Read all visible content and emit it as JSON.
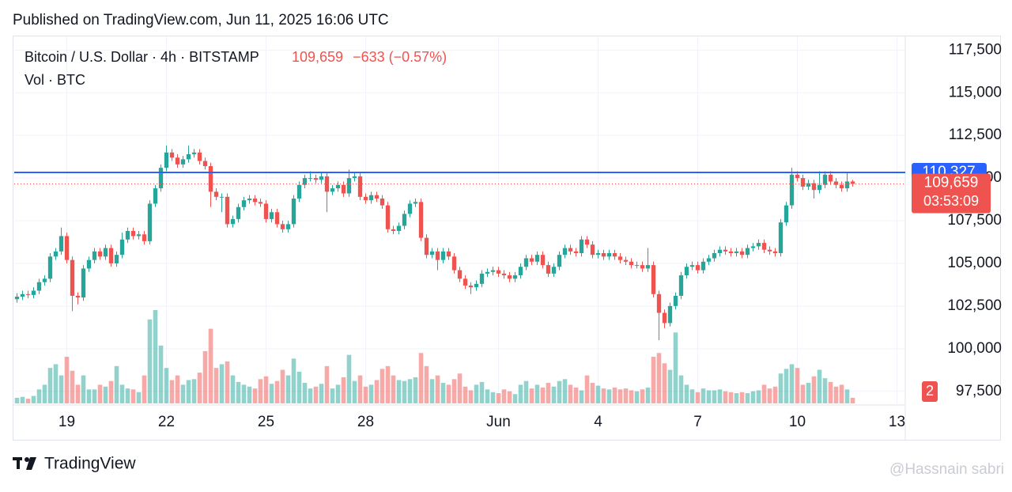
{
  "published": "Published on TradingView.com, Jun 11, 2025 16:06 UTC",
  "brand": "TradingView",
  "watermark": "@Hassnain sabri",
  "badge": "2",
  "chart_data": {
    "type": "candlestick",
    "title": "Bitcoin / U.S. Dollar · 4h · BITSTAMP",
    "price_label": "109,659",
    "change_label": "−633 (−0.57%)",
    "volume_label": "Vol · BTC",
    "up_color": "#26a69a",
    "down_color": "#ef5350",
    "grid": true,
    "xlim": [
      -0.5,
      160.5
    ],
    "xticks": [
      {
        "value": 9,
        "label": "19"
      },
      {
        "value": 27,
        "label": "22"
      },
      {
        "value": 45,
        "label": "25"
      },
      {
        "value": 63,
        "label": "28"
      },
      {
        "value": 87,
        "label": "Jun"
      },
      {
        "value": 105,
        "label": "4"
      },
      {
        "value": 123,
        "label": "7"
      },
      {
        "value": 141,
        "label": "10"
      },
      {
        "value": 159,
        "label": "13"
      }
    ],
    "ylim": [
      96700,
      118350
    ],
    "yticks": [
      {
        "value": 97500,
        "label": "97,500"
      },
      {
        "value": 100000,
        "label": "100,000"
      },
      {
        "value": 102500,
        "label": "102,500"
      },
      {
        "value": 105000,
        "label": "105,000"
      },
      {
        "value": 107500,
        "label": "107,500"
      },
      {
        "value": 110000,
        "label": "110,000"
      },
      {
        "value": 112500,
        "label": "112,500"
      },
      {
        "value": 115000,
        "label": "115,000"
      },
      {
        "value": 117500,
        "label": "117,500"
      }
    ],
    "vlim": [
      0,
      1000
    ],
    "price_line": {
      "value": 110327,
      "label": "110,327",
      "color": "#2962ff"
    },
    "last_line": {
      "value": 109659,
      "label": "109,659",
      "countdown": "03:53:09",
      "color": "#ef5350"
    },
    "open": [
      102900,
      103050,
      103200,
      103150,
      103400,
      103900,
      104100,
      105400,
      105700,
      106600,
      105200,
      103100,
      103000,
      104700,
      105200,
      105700,
      105400,
      105900,
      105000,
      105500,
      106400,
      106900,
      106600,
      106700,
      106300,
      108500,
      109400,
      110600,
      111500,
      111200,
      110800,
      111100,
      111400,
      111500,
      111000,
      110700,
      109200,
      108900,
      108900,
      107300,
      107600,
      108300,
      108700,
      108800,
      108600,
      108500,
      107600,
      108000,
      107300,
      107000,
      107300,
      108800,
      109600,
      110000,
      110000,
      109900,
      110100,
      109200,
      109400,
      109600,
      109100,
      110000,
      110100,
      108900,
      108700,
      109000,
      108800,
      108400,
      107000,
      106900,
      107200,
      107900,
      108500,
      108600,
      106500,
      105500,
      105700,
      105200,
      105700,
      105400,
      104600,
      104100,
      103700,
      103600,
      103800,
      104400,
      104500,
      104600,
      104400,
      104300,
      104100,
      104300,
      104800,
      105300,
      105100,
      105500,
      104900,
      104400,
      104800,
      105500,
      105900,
      105700,
      105600,
      106400,
      106100,
      105500,
      105600,
      105400,
      105600,
      105400,
      105200,
      105100,
      104900,
      104900,
      104700,
      104900,
      103200,
      102100,
      101500,
      102500,
      103100,
      104300,
      104800,
      104900,
      104600,
      105100,
      105300,
      105600,
      105800,
      105700,
      105600,
      105700,
      105500,
      105900,
      106000,
      106200,
      105800,
      105700,
      105600,
      107400,
      108400,
      110200,
      110000,
      109500,
      109700,
      109300,
      109600,
      110200,
      109800,
      109600,
      109400,
      109800
    ],
    "high": [
      103250,
      103400,
      103400,
      103600,
      104100,
      104300,
      105600,
      105900,
      107100,
      106800,
      105400,
      103300,
      104900,
      105400,
      105900,
      105900,
      106100,
      106100,
      105700,
      106800,
      107100,
      107100,
      106900,
      106900,
      108700,
      109600,
      110800,
      111900,
      111700,
      111400,
      111300,
      111900,
      111700,
      111700,
      111200,
      110900,
      109400,
      109100,
      109100,
      107800,
      108500,
      108900,
      109000,
      109000,
      108800,
      108700,
      108200,
      108200,
      107500,
      107500,
      109000,
      109800,
      110200,
      110400,
      110200,
      110300,
      110300,
      109600,
      109800,
      109800,
      110500,
      110300,
      110300,
      109100,
      109200,
      109200,
      109000,
      108600,
      107200,
      107400,
      108100,
      108700,
      108800,
      108800,
      106700,
      105900,
      105900,
      105900,
      105900,
      105600,
      104800,
      104300,
      103900,
      104000,
      104600,
      104700,
      104800,
      104800,
      104600,
      104500,
      104500,
      105000,
      105500,
      105500,
      105700,
      105700,
      105100,
      105000,
      105700,
      106100,
      106100,
      105900,
      106600,
      106600,
      106300,
      105800,
      105800,
      105800,
      105800,
      105600,
      105400,
      105300,
      105100,
      105100,
      105900,
      105100,
      103400,
      102300,
      102700,
      103300,
      104500,
      105000,
      105100,
      105100,
      105300,
      105500,
      105800,
      106000,
      106000,
      105900,
      105900,
      105900,
      106100,
      106200,
      106400,
      106400,
      106000,
      105900,
      107600,
      108600,
      110600,
      110400,
      110200,
      109900,
      109900,
      110400,
      110400,
      110400,
      110000,
      109800,
      110300,
      109900
    ],
    "low": [
      102700,
      102850,
      102950,
      102950,
      103200,
      103700,
      103900,
      105200,
      105500,
      105000,
      102200,
      102600,
      102800,
      104500,
      105000,
      105200,
      105200,
      104800,
      104800,
      105300,
      106200,
      106400,
      106400,
      106100,
      106100,
      108300,
      109200,
      110400,
      111000,
      110600,
      110600,
      110900,
      111200,
      110800,
      110500,
      108300,
      108700,
      108000,
      107100,
      107100,
      107400,
      108100,
      108500,
      108400,
      108300,
      107400,
      107400,
      107100,
      106800,
      106800,
      107100,
      108600,
      109400,
      109800,
      109700,
      109700,
      108000,
      109000,
      109200,
      108900,
      108900,
      109800,
      108700,
      108500,
      108500,
      108600,
      108200,
      106800,
      106700,
      106700,
      107000,
      107700,
      108300,
      106300,
      105300,
      105300,
      104600,
      105000,
      105200,
      104400,
      103900,
      103500,
      103200,
      103400,
      103600,
      104200,
      104300,
      104200,
      104100,
      103900,
      103900,
      104100,
      104600,
      104900,
      104900,
      104700,
      104200,
      104200,
      104600,
      105300,
      105500,
      105400,
      105400,
      105900,
      105300,
      105300,
      105200,
      105200,
      105200,
      105000,
      104900,
      104700,
      104700,
      104500,
      104500,
      103000,
      100500,
      101200,
      101300,
      102300,
      102900,
      104100,
      104600,
      104400,
      104400,
      104900,
      105100,
      105400,
      105500,
      105400,
      105400,
      105300,
      105300,
      105700,
      105800,
      105600,
      105500,
      105400,
      105400,
      107200,
      108200,
      109800,
      109300,
      109300,
      108800,
      109100,
      109400,
      109600,
      109400,
      109200,
      109200,
      109500
    ],
    "close": [
      103050,
      103200,
      103150,
      103400,
      103900,
      104100,
      105400,
      105700,
      106600,
      105200,
      103100,
      103000,
      104700,
      105200,
      105700,
      105400,
      105900,
      105000,
      105500,
      106400,
      106900,
      106600,
      106700,
      106300,
      108500,
      109400,
      110600,
      111500,
      111200,
      110800,
      111100,
      111400,
      111500,
      111000,
      110700,
      109200,
      108900,
      108900,
      107300,
      107600,
      108300,
      108700,
      108800,
      108600,
      108500,
      107600,
      108000,
      107300,
      107000,
      107300,
      108800,
      109600,
      110000,
      110000,
      109900,
      110100,
      109200,
      109400,
      109600,
      109100,
      110000,
      110100,
      108900,
      108700,
      109000,
      108800,
      108400,
      107000,
      106900,
      107200,
      107900,
      108500,
      108600,
      106500,
      105500,
      105700,
      105200,
      105700,
      105400,
      104600,
      104100,
      103700,
      103600,
      103800,
      104400,
      104500,
      104600,
      104400,
      104300,
      104100,
      104300,
      104800,
      105300,
      105100,
      105500,
      104900,
      104400,
      104800,
      105500,
      105900,
      105700,
      105600,
      106400,
      106100,
      105500,
      105600,
      105400,
      105600,
      105400,
      105200,
      105100,
      104900,
      104900,
      104700,
      104900,
      103200,
      102100,
      101500,
      102500,
      103100,
      104300,
      104800,
      104900,
      104600,
      105100,
      105300,
      105600,
      105800,
      105700,
      105600,
      105700,
      105500,
      105900,
      106000,
      106200,
      105800,
      105700,
      105600,
      107400,
      108400,
      110200,
      110000,
      109500,
      109700,
      109300,
      109600,
      110200,
      109800,
      109600,
      109400,
      109800,
      109659
    ],
    "volume": [
      60,
      70,
      50,
      80,
      150,
      200,
      380,
      420,
      300,
      500,
      350,
      200,
      300,
      150,
      150,
      200,
      180,
      240,
      400,
      200,
      160,
      150,
      120,
      300,
      900,
      1000,
      620,
      380,
      250,
      300,
      200,
      250,
      260,
      330,
      560,
      800,
      380,
      420,
      450,
      300,
      230,
      200,
      180,
      160,
      260,
      290,
      210,
      240,
      360,
      300,
      480,
      340,
      220,
      160,
      180,
      210,
      400,
      160,
      200,
      280,
      520,
      240,
      300,
      180,
      200,
      250,
      370,
      400,
      300,
      250,
      240,
      260,
      280,
      540,
      400,
      260,
      300,
      220,
      200,
      260,
      320,
      180,
      140,
      200,
      230,
      150,
      120,
      110,
      150,
      130,
      100,
      200,
      240,
      160,
      200,
      170,
      220,
      180,
      240,
      260,
      200,
      170,
      140,
      300,
      220,
      190,
      160,
      150,
      170,
      150,
      160,
      140,
      130,
      150,
      170,
      500,
      540,
      430,
      360,
      760,
      300,
      200,
      150,
      120,
      160,
      140,
      140,
      150,
      130,
      120,
      110,
      120,
      110,
      130,
      140,
      200,
      160,
      180,
      320,
      370,
      420,
      380,
      200,
      220,
      290,
      360,
      270,
      230,
      180,
      200,
      150,
      60
    ]
  }
}
